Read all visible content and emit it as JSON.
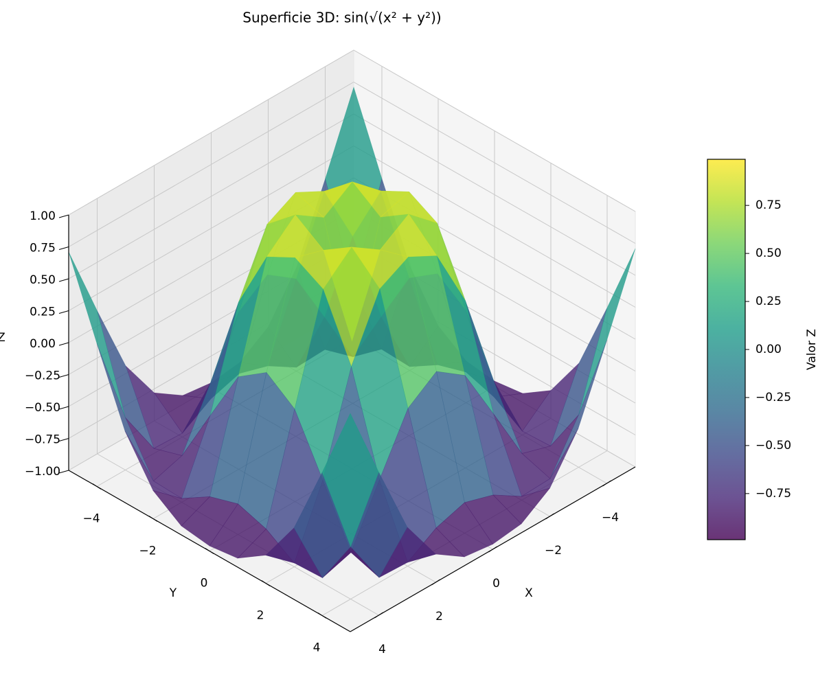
{
  "chart_data": {
    "type": "surface",
    "title": "Superficie 3D: sin(√(x² + y²))",
    "x_label": "X",
    "y_label": "Y",
    "z_label": "Z",
    "x": [
      -5,
      -4,
      -3,
      -2,
      -1,
      0,
      1,
      2,
      3,
      4,
      5
    ],
    "y": [
      -5,
      -4,
      -3,
      -2,
      -1,
      0,
      1,
      2,
      3,
      4,
      5
    ],
    "z": [
      [
        0.71,
        0.12,
        -0.44,
        -0.78,
        -0.93,
        -0.96,
        -0.93,
        -0.78,
        -0.44,
        0.12,
        0.71
      ],
      [
        0.12,
        -0.59,
        -0.96,
        -0.97,
        -0.83,
        -0.76,
        -0.83,
        -0.97,
        -0.96,
        -0.59,
        0.12
      ],
      [
        -0.44,
        -0.96,
        -0.89,
        -0.45,
        -0.02,
        0.14,
        -0.02,
        -0.45,
        -0.89,
        -0.96,
        -0.44
      ],
      [
        -0.78,
        -0.97,
        -0.45,
        0.31,
        0.79,
        0.91,
        0.79,
        0.31,
        -0.45,
        -0.97,
        -0.78
      ],
      [
        -0.93,
        -0.83,
        -0.02,
        0.79,
        0.99,
        0.84,
        0.99,
        0.79,
        -0.02,
        -0.83,
        -0.93
      ],
      [
        -0.96,
        -0.76,
        0.14,
        0.91,
        0.84,
        0,
        0.84,
        0.91,
        0.14,
        -0.76,
        -0.96
      ],
      [
        -0.93,
        -0.83,
        -0.02,
        0.79,
        0.99,
        0.84,
        0.99,
        0.79,
        -0.02,
        -0.83,
        -0.93
      ],
      [
        -0.78,
        -0.97,
        -0.45,
        0.31,
        0.79,
        0.91,
        0.79,
        0.31,
        -0.45,
        -0.97,
        -0.78
      ],
      [
        -0.44,
        -0.96,
        -0.89,
        -0.45,
        -0.02,
        0.14,
        -0.02,
        -0.45,
        -0.89,
        -0.96,
        -0.44
      ],
      [
        0.12,
        -0.59,
        -0.96,
        -0.97,
        -0.83,
        -0.76,
        -0.83,
        -0.97,
        -0.96,
        -0.59,
        0.12
      ],
      [
        0.71,
        0.12,
        -0.44,
        -0.78,
        -0.93,
        -0.96,
        -0.93,
        -0.78,
        -0.44,
        0.12,
        0.71
      ]
    ],
    "xlim": [
      -5,
      5
    ],
    "ylim": [
      -5,
      5
    ],
    "zlim": [
      -1,
      1
    ],
    "xticks": [
      {
        "value": -4,
        "label": "−4"
      },
      {
        "value": -2,
        "label": "−2"
      },
      0,
      2,
      4
    ],
    "yticks": [
      {
        "value": -4,
        "label": "−4"
      },
      {
        "value": -2,
        "label": "−2"
      },
      0,
      2,
      4
    ],
    "zticks": [
      {
        "value": -1,
        "label": "−1.00"
      },
      {
        "value": -0.75,
        "label": "−0.75"
      },
      {
        "value": -0.5,
        "label": "−0.50"
      },
      {
        "value": -0.25,
        "label": "−0.25"
      },
      {
        "value": 0,
        "label": "0.00"
      },
      {
        "value": 0.25,
        "label": "0.25"
      },
      {
        "value": 0.5,
        "label": "0.50"
      },
      {
        "value": 0.75,
        "label": "0.75"
      },
      {
        "value": 1,
        "label": "1.00"
      }
    ],
    "grid": true,
    "alpha": 0.8,
    "colormap": [
      "#440154",
      "#482878",
      "#3e4989",
      "#31688e",
      "#26828e",
      "#1f9e89",
      "#35b779",
      "#6ece58",
      "#b5de2b",
      "#fde725"
    ],
    "colorbar": {
      "label": "Valor Z",
      "lim": [
        -0.99,
        0.99
      ],
      "ticks": [
        {
          "value": -0.75,
          "label": "−0.75"
        },
        {
          "value": -0.5,
          "label": "−0.50"
        },
        {
          "value": -0.25,
          "label": "−0.25"
        },
        {
          "value": 0,
          "label": "0.00"
        },
        {
          "value": 0.25,
          "label": "0.25"
        },
        {
          "value": 0.5,
          "label": "0.50"
        },
        {
          "value": 0.75,
          "label": "0.75"
        }
      ]
    }
  }
}
